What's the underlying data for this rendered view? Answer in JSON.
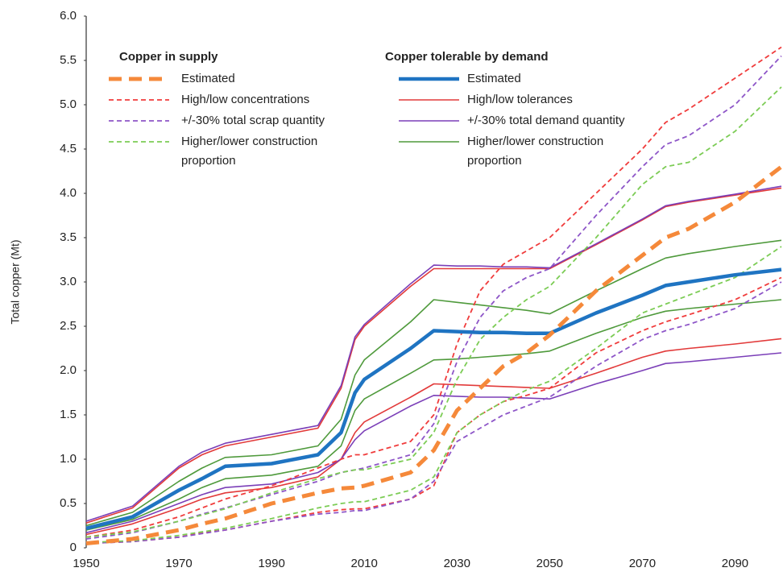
{
  "chart_data": {
    "type": "line",
    "y_label": "Total copper (Mt)",
    "x": [
      1950,
      1960,
      1970,
      1975,
      1980,
      1990,
      2000,
      2005,
      2008,
      2010,
      2020,
      2025,
      2030,
      2035,
      2040,
      2045,
      2050,
      2060,
      2070,
      2075,
      2080,
      2090,
      2100
    ],
    "xlim": [
      1950,
      2100
    ],
    "xticks": [
      1950,
      1970,
      1990,
      2010,
      2030,
      2050,
      2070,
      2090
    ],
    "ylim": [
      0,
      6
    ],
    "yticks": [
      0,
      0.5,
      {
        "value": 1,
        "label": "1.0"
      },
      1.5,
      {
        "value": 2,
        "label": "2.0"
      },
      2.5,
      {
        "value": 3,
        "label": "3.0"
      },
      3.5,
      {
        "value": 4,
        "label": "4.0"
      },
      4.5,
      {
        "value": 5,
        "label": "5.0"
      },
      5.5,
      {
        "value": 6,
        "label": "6.0"
      }
    ],
    "legend_groups": [
      "Copper in supply",
      "Copper tolerable by demand"
    ],
    "series": [
      {
        "name": "Estimated",
        "group": 0,
        "color": "#f5893a",
        "style": "dashed",
        "width": 5,
        "values": [
          0.05,
          0.1,
          0.2,
          0.27,
          0.33,
          0.5,
          0.62,
          0.67,
          0.68,
          0.7,
          0.85,
          1.1,
          1.55,
          1.8,
          2.05,
          2.2,
          2.4,
          2.9,
          3.3,
          3.5,
          3.6,
          3.9,
          4.3
        ]
      },
      {
        "name": "High/low concentrations",
        "group": 0,
        "color": "#f03c3c",
        "style": "dashed",
        "width": 1.8,
        "values": [
          0.12,
          0.2,
          0.35,
          0.45,
          0.55,
          0.7,
          0.9,
          1.0,
          1.05,
          1.05,
          1.2,
          1.5,
          2.3,
          2.9,
          3.2,
          3.35,
          3.5,
          4.0,
          4.5,
          4.8,
          4.95,
          5.3,
          5.65
        ],
        "low_values": [
          0.05,
          0.07,
          0.12,
          0.17,
          0.2,
          0.3,
          0.4,
          0.43,
          0.44,
          0.44,
          0.55,
          0.7,
          1.3,
          1.5,
          1.65,
          1.72,
          1.8,
          2.2,
          2.45,
          2.55,
          2.63,
          2.8,
          3.05
        ]
      },
      {
        "name": "+/-30% total scrap quantity",
        "group": 0,
        "color": "#8e56c8",
        "style": "dashed",
        "width": 1.8,
        "values": [
          0.1,
          0.17,
          0.3,
          0.38,
          0.45,
          0.6,
          0.75,
          0.85,
          0.88,
          0.9,
          1.05,
          1.4,
          2.1,
          2.6,
          2.9,
          3.05,
          3.15,
          3.75,
          4.3,
          4.55,
          4.65,
          5.0,
          5.55
        ],
        "low_values": [
          0.05,
          0.07,
          0.12,
          0.16,
          0.2,
          0.3,
          0.38,
          0.4,
          0.42,
          0.42,
          0.55,
          0.75,
          1.2,
          1.35,
          1.5,
          1.6,
          1.7,
          2.05,
          2.35,
          2.45,
          2.52,
          2.7,
          3.0
        ]
      },
      {
        "name": "Higher/lower construction proportion",
        "group": 0,
        "color": "#7ccc55",
        "style": "dashed",
        "width": 1.8,
        "values": [
          0.12,
          0.18,
          0.3,
          0.37,
          0.44,
          0.62,
          0.78,
          0.85,
          0.88,
          0.88,
          1.0,
          1.3,
          1.9,
          2.35,
          2.6,
          2.8,
          2.95,
          3.5,
          4.1,
          4.3,
          4.35,
          4.7,
          5.2
        ],
        "low_values": [
          0.06,
          0.08,
          0.14,
          0.18,
          0.22,
          0.33,
          0.45,
          0.5,
          0.52,
          0.52,
          0.65,
          0.8,
          1.3,
          1.5,
          1.65,
          1.78,
          1.88,
          2.25,
          2.65,
          2.75,
          2.85,
          3.05,
          3.4
        ]
      },
      {
        "name": "Estimated",
        "group": 1,
        "color": "#1f74c2",
        "style": "solid",
        "width": 4.5,
        "values": [
          0.22,
          0.35,
          0.65,
          0.78,
          0.92,
          0.95,
          1.05,
          1.3,
          1.75,
          1.9,
          2.25,
          2.45,
          2.44,
          2.43,
          2.43,
          2.42,
          2.42,
          2.65,
          2.85,
          2.96,
          3.0,
          3.08,
          3.14
        ]
      },
      {
        "name": "High/low tolerances",
        "group": 1,
        "color": "#e23a3a",
        "style": "solid",
        "width": 1.6,
        "values": [
          0.28,
          0.45,
          0.9,
          1.05,
          1.15,
          1.25,
          1.35,
          1.8,
          2.35,
          2.5,
          2.95,
          3.15,
          3.15,
          3.15,
          3.15,
          3.15,
          3.15,
          3.42,
          3.7,
          3.85,
          3.9,
          3.98,
          4.06
        ],
        "low_values": [
          0.15,
          0.27,
          0.45,
          0.55,
          0.62,
          0.68,
          0.8,
          1.0,
          1.3,
          1.42,
          1.7,
          1.85,
          1.84,
          1.83,
          1.82,
          1.81,
          1.8,
          1.97,
          2.15,
          2.22,
          2.25,
          2.3,
          2.36
        ]
      },
      {
        "name": "+/-30% total demand quantity",
        "group": 1,
        "color": "#7b3fb8",
        "style": "solid",
        "width": 1.6,
        "values": [
          0.3,
          0.47,
          0.92,
          1.08,
          1.18,
          1.28,
          1.38,
          1.83,
          2.38,
          2.52,
          2.98,
          3.19,
          3.18,
          3.18,
          3.17,
          3.17,
          3.16,
          3.43,
          3.71,
          3.86,
          3.91,
          3.99,
          4.08
        ],
        "low_values": [
          0.17,
          0.3,
          0.5,
          0.6,
          0.68,
          0.72,
          0.85,
          1.0,
          1.22,
          1.32,
          1.6,
          1.72,
          1.71,
          1.7,
          1.7,
          1.69,
          1.68,
          1.85,
          2.0,
          2.08,
          2.1,
          2.15,
          2.2
        ]
      },
      {
        "name": "Higher/lower construction proportion",
        "group": 1,
        "color": "#4f9a3c",
        "style": "solid",
        "width": 1.6,
        "values": [
          0.25,
          0.4,
          0.75,
          0.9,
          1.02,
          1.05,
          1.15,
          1.45,
          1.95,
          2.12,
          2.55,
          2.8,
          2.77,
          2.74,
          2.71,
          2.68,
          2.64,
          2.9,
          3.15,
          3.27,
          3.32,
          3.4,
          3.47
        ],
        "low_values": [
          0.2,
          0.32,
          0.55,
          0.68,
          0.78,
          0.82,
          0.92,
          1.15,
          1.55,
          1.68,
          1.97,
          2.12,
          2.13,
          2.15,
          2.17,
          2.19,
          2.22,
          2.42,
          2.6,
          2.67,
          2.7,
          2.75,
          2.8
        ]
      }
    ]
  }
}
